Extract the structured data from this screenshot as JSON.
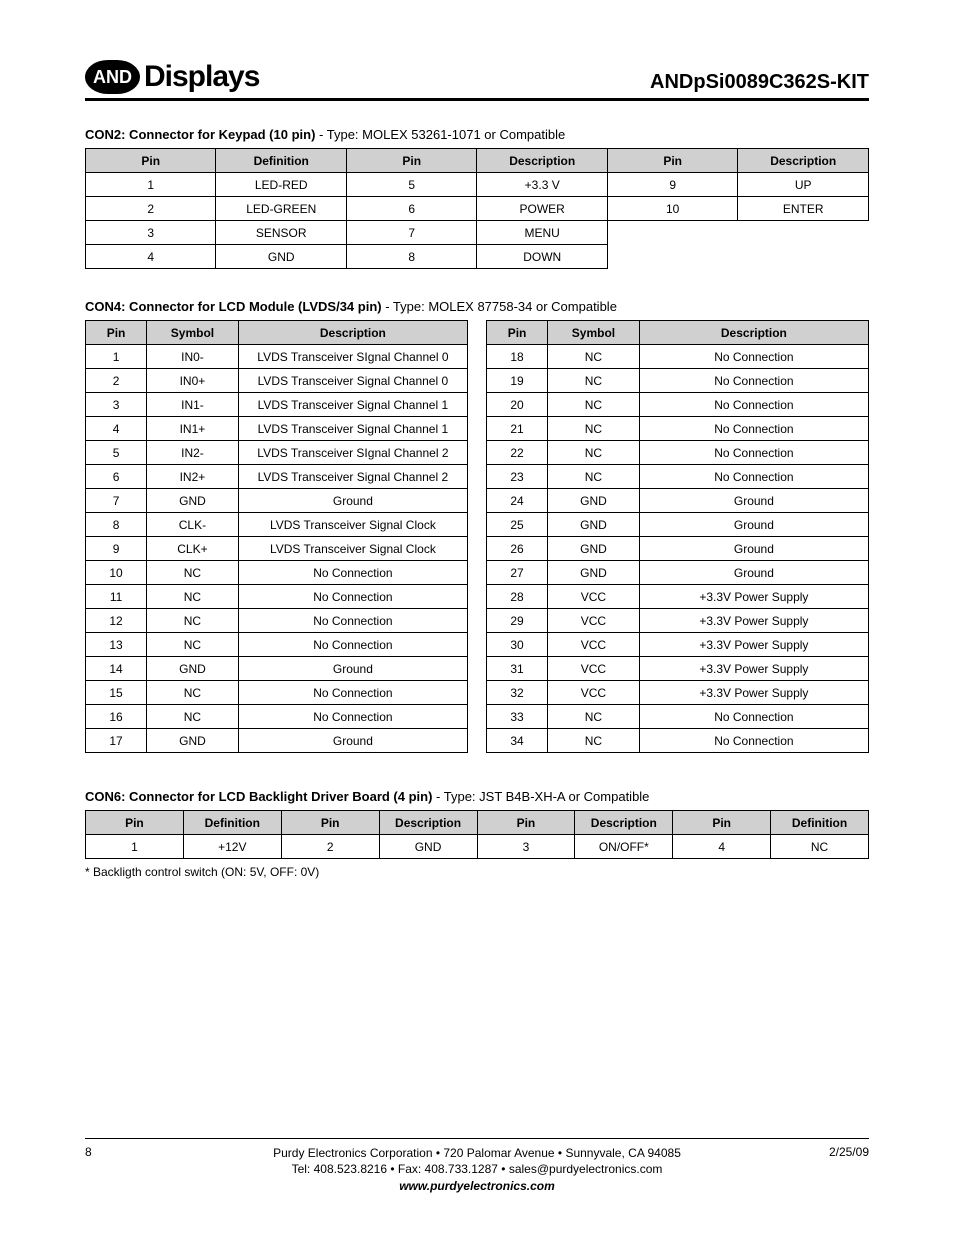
{
  "header": {
    "logo_badge": "AND",
    "logo_text": "Displays",
    "product": "ANDpSi0089C362S-KIT"
  },
  "con2": {
    "title_bold": "CON2: Connector for Keypad (10 pin)",
    "title_rest": " - Type: MOLEX 53261-1071 or Compatible",
    "headers": [
      "Pin",
      "Definition",
      "Pin",
      "Description",
      "Pin",
      "Description"
    ],
    "rows": [
      [
        "1",
        "LED-RED",
        "5",
        "+3.3 V",
        "9",
        "UP"
      ],
      [
        "2",
        "LED-GREEN",
        "6",
        "POWER",
        "10",
        "ENTER"
      ],
      [
        "3",
        "SENSOR",
        "7",
        "MENU",
        "",
        ""
      ],
      [
        "4",
        "GND",
        "8",
        "DOWN",
        "",
        ""
      ]
    ]
  },
  "con4": {
    "title_bold": "CON4: Connector for LCD Module (LVDS/34 pin)",
    "title_rest": " - Type: MOLEX 87758-34 or Compatible",
    "headers": [
      "Pin",
      "Symbol",
      "Description"
    ],
    "left": [
      [
        "1",
        "IN0-",
        "LVDS Transceiver SIgnal Channel 0"
      ],
      [
        "2",
        "IN0+",
        "LVDS Transceiver Signal Channel 0"
      ],
      [
        "3",
        "IN1-",
        "LVDS Transceiver Signal Channel 1"
      ],
      [
        "4",
        "IN1+",
        "LVDS Transceiver Signal Channel 1"
      ],
      [
        "5",
        "IN2-",
        "LVDS Transceiver SIgnal Channel 2"
      ],
      [
        "6",
        "IN2+",
        "LVDS Transceiver Signal Channel 2"
      ],
      [
        "7",
        "GND",
        "Ground"
      ],
      [
        "8",
        "CLK-",
        "LVDS Transceiver Signal Clock"
      ],
      [
        "9",
        "CLK+",
        "LVDS Transceiver Signal Clock"
      ],
      [
        "10",
        "NC",
        "No Connection"
      ],
      [
        "11",
        "NC",
        "No Connection"
      ],
      [
        "12",
        "NC",
        "No Connection"
      ],
      [
        "13",
        "NC",
        "No Connection"
      ],
      [
        "14",
        "GND",
        "Ground"
      ],
      [
        "15",
        "NC",
        "No Connection"
      ],
      [
        "16",
        "NC",
        "No Connection"
      ],
      [
        "17",
        "GND",
        "Ground"
      ]
    ],
    "right": [
      [
        "18",
        "NC",
        "No Connection"
      ],
      [
        "19",
        "NC",
        "No Connection"
      ],
      [
        "20",
        "NC",
        "No Connection"
      ],
      [
        "21",
        "NC",
        "No Connection"
      ],
      [
        "22",
        "NC",
        "No Connection"
      ],
      [
        "23",
        "NC",
        "No Connection"
      ],
      [
        "24",
        "GND",
        "Ground"
      ],
      [
        "25",
        "GND",
        "Ground"
      ],
      [
        "26",
        "GND",
        "Ground"
      ],
      [
        "27",
        "GND",
        "Ground"
      ],
      [
        "28",
        "VCC",
        "+3.3V Power Supply"
      ],
      [
        "29",
        "VCC",
        "+3.3V Power Supply"
      ],
      [
        "30",
        "VCC",
        "+3.3V Power Supply"
      ],
      [
        "31",
        "VCC",
        "+3.3V Power Supply"
      ],
      [
        "32",
        "VCC",
        "+3.3V Power Supply"
      ],
      [
        "33",
        "NC",
        "No Connection"
      ],
      [
        "34",
        "NC",
        "No Connection"
      ]
    ]
  },
  "con6": {
    "title_bold": "CON6: Connector for LCD Backlight Driver Board (4 pin)",
    "title_rest": " - Type: JST B4B-XH-A or Compatible",
    "headers": [
      "Pin",
      "Definition",
      "Pin",
      "Description",
      "Pin",
      "Description",
      "Pin",
      "Definition"
    ],
    "row": [
      "1",
      "+12V",
      "2",
      "GND",
      "3",
      "ON/OFF*",
      "4",
      "NC"
    ],
    "footnote": "* Backligth control switch (ON: 5V, OFF: 0V)"
  },
  "footer": {
    "line1": "Purdy Electronics Corporation  •  720 Palomar Avenue  •  Sunnyvale, CA 94085",
    "line2": "Tel: 408.523.8216  •  Fax: 408.733.1287  •  sales@purdyelectronics.com",
    "url": "www.purdyelectronics.com",
    "page": "8",
    "date": "2/25/09"
  }
}
